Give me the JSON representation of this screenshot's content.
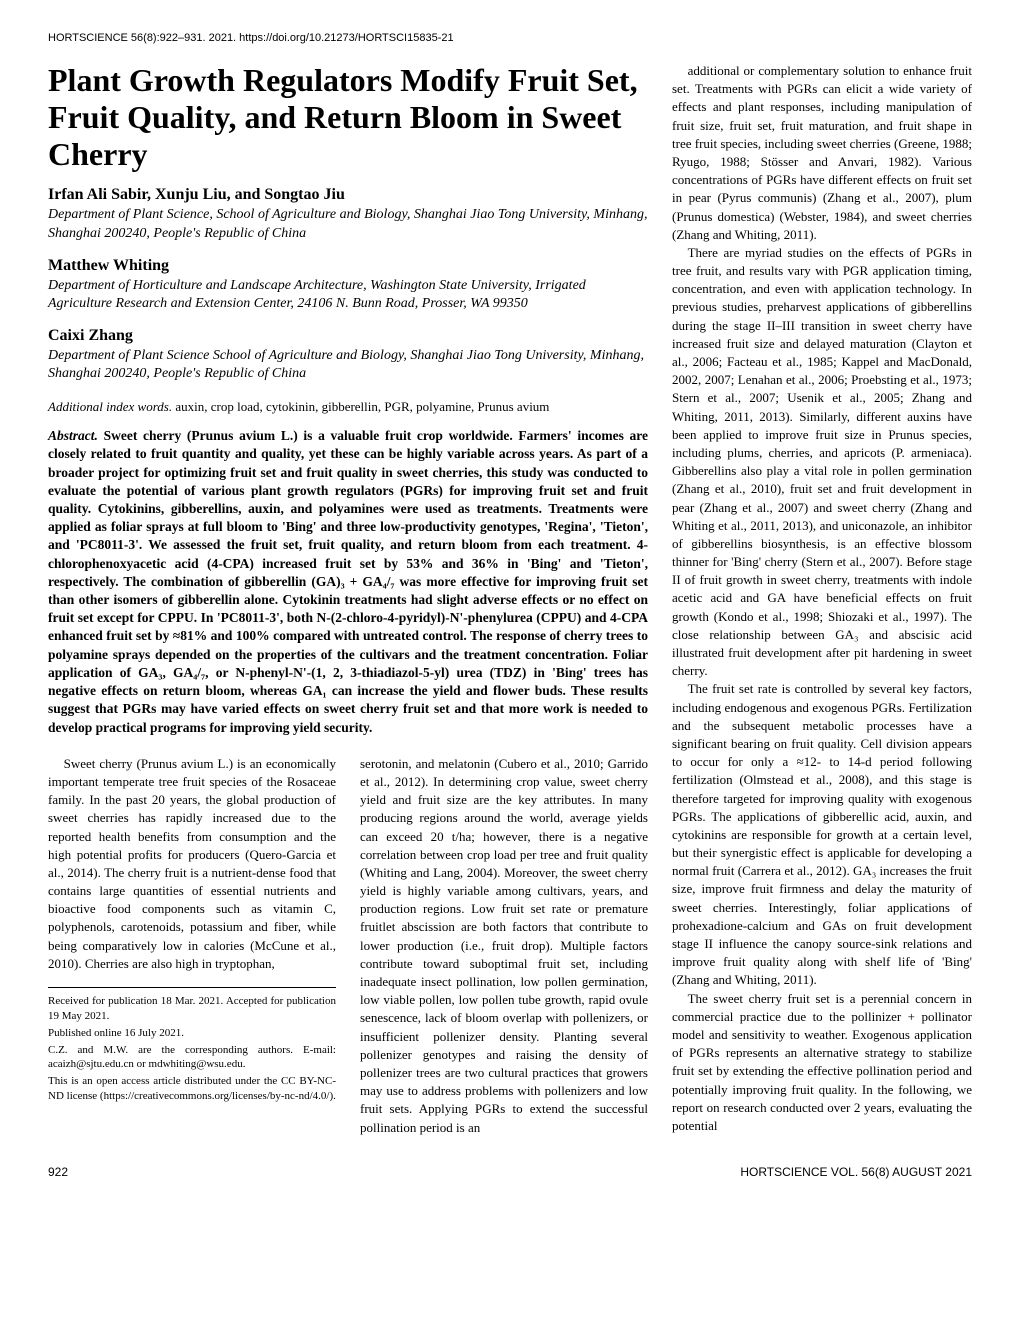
{
  "journal_header": "HORTSCIENCE 56(8):922–931. 2021. https://doi.org/10.21273/HORTSCI15835-21",
  "title": "Plant Growth Regulators Modify Fruit Set, Fruit Quality, and Return Bloom in Sweet Cherry",
  "authors": [
    {
      "names": "Irfan Ali Sabir, Xunju Liu, and Songtao Jiu",
      "affiliation": "Department of Plant Science, School of Agriculture and Biology, Shanghai Jiao Tong University, Minhang, Shanghai 200240, People's Republic of China"
    },
    {
      "names": "Matthew Whiting",
      "affiliation": "Department of Horticulture and Landscape Architecture, Washington State University, Irrigated Agriculture Research and Extension Center, 24106 N. Bunn Road, Prosser, WA 99350"
    },
    {
      "names": "Caixi Zhang",
      "affiliation": "Department of Plant Science School of Agriculture and Biology, Shanghai Jiao Tong University, Minhang, Shanghai 200240, People's Republic of China"
    }
  ],
  "keywords_label": "Additional index words.",
  "keywords_text": " auxin, crop load, cytokinin, gibberellin, PGR, polyamine, Prunus avium",
  "abstract_lead": "Abstract.",
  "abstract_body": " Sweet cherry (Prunus avium L.) is a valuable fruit crop worldwide. Farmers' incomes are closely related to fruit quantity and quality, yet these can be highly variable across years. As part of a broader project for optimizing fruit set and fruit quality in sweet cherries, this study was conducted to evaluate the potential of various plant growth regulators (PGRs) for improving fruit set and fruit quality. Cytokinins, gibberellins, auxin, and polyamines were used as treatments. Treatments were applied as foliar sprays at full bloom to 'Bing' and three low-productivity genotypes, 'Regina', 'Tieton', and 'PC8011-3'. We assessed the fruit set, fruit quality, and return bloom from each treatment. 4-chlorophenoxyacetic acid (4-CPA) increased fruit set by 53% and 36% in 'Bing' and 'Tieton', respectively. The combination of gibberellin (GA)₃ + GA₄/₇ was more effective for improving fruit set than other isomers of gibberellin alone. Cytokinin treatments had slight adverse effects or no effect on fruit set except for CPPU. In 'PC8011-3', both N-(2-chloro-4-pyridyl)-N'-phenylurea (CPPU) and 4-CPA enhanced fruit set by ≈81% and 100% compared with untreated control. The response of cherry trees to polyamine sprays depended on the properties of the cultivars and the treatment concentration. Foliar application of GA₃, GA₄/₇, or N-phenyl-N'-(1, 2, 3-thiadiazol-5-yl) urea (TDZ) in 'Bing' trees has negative effects on return bloom, whereas GA₁ can increase the yield and flower buds. These results suggest that PGRs may have varied effects on sweet cherry fruit set and that more work is needed to develop practical programs for improving yield security.",
  "body_left_1": "Sweet cherry (Prunus avium L.) is an economically important temperate tree fruit species of the Rosaceae family. In the past 20 years, the global production of sweet cherries has rapidly increased due to the reported health benefits from consumption and the high potential profits for producers (Quero-Garcia et al., 2014). The cherry fruit is a nutrient-dense food that contains large quantities of essential nutrients and bioactive food components such as vitamin C, polyphenols, carotenoids, potassium and fiber, while being comparatively low in calories (McCune et al., 2010). Cherries are also high in tryptophan,",
  "body_left_2": "serotonin, and melatonin (Cubero et al., 2010; Garrido et al., 2012). In determining crop value, sweet cherry yield and fruit size are the key attributes. In many producing regions around the world, average yields can exceed 20 t/ha; however, there is a negative correlation between crop load per tree and fruit quality (Whiting and Lang, 2004). Moreover, the sweet cherry yield is highly variable among cultivars, years, and production regions. Low fruit set rate or premature fruitlet abscission are both factors that contribute to lower production (i.e., fruit drop). Multiple factors contribute toward suboptimal fruit set, including inadequate insect pollination, low pollen germination, low viable pollen, low pollen tube growth, rapid ovule senescence, lack of bloom overlap with pollenizers, or insufficient pollenizer density. Planting several pollenizer genotypes and raising the density of pollenizer trees are two cultural practices that growers may use to address problems with pollenizers and low fruit sets. Applying PGRs to extend the successful pollination period is an",
  "footnotes": {
    "received": "Received for publication 18 Mar. 2021. Accepted for publication 19 May 2021.",
    "published": "Published online 16 July 2021.",
    "corresponding": "C.Z. and M.W. are the corresponding authors. E-mail: acaizh@sjtu.edu.cn or mdwhiting@wsu.edu.",
    "license": "This is an open access article distributed under the CC BY-NC-ND license (https://creativecommons.org/licenses/by-nc-nd/4.0/)."
  },
  "body_right_1": "additional or complementary solution to enhance fruit set. Treatments with PGRs can elicit a wide variety of effects and plant responses, including manipulation of fruit size, fruit set, fruit maturation, and fruit shape in tree fruit species, including sweet cherries (Greene, 1988; Ryugo, 1988; Stösser and Anvari, 1982). Various concentrations of PGRs have different effects on fruit set in pear (Pyrus communis) (Zhang et al., 2007), plum (Prunus domestica) (Webster, 1984), and sweet cherries (Zhang and Whiting, 2011).",
  "body_right_2": "There are myriad studies on the effects of PGRs in tree fruit, and results vary with PGR application timing, concentration, and even with application technology. In previous studies, preharvest applications of gibberellins during the stage II–III transition in sweet cherry have increased fruit size and delayed maturation (Clayton et al., 2006; Facteau et al., 1985; Kappel and MacDonald, 2002, 2007; Lenahan et al., 2006; Proebsting et al., 1973; Stern et al., 2007; Usenik et al., 2005; Zhang and Whiting, 2011, 2013). Similarly, different auxins have been applied to improve fruit size in Prunus species, including plums, cherries, and apricots (P. armeniaca). Gibberellins also play a vital role in pollen germination (Zhang et al., 2010), fruit set and fruit development in pear (Zhang et al., 2007) and sweet cherry (Zhang and Whiting et al., 2011, 2013), and uniconazole, an inhibitor of gibberellins biosynthesis, is an effective blossom thinner for 'Bing' cherry (Stern et al., 2007). Before stage II of fruit growth in sweet cherry, treatments with indole acetic acid and GA have beneficial effects on fruit growth (Kondo et al., 1998; Shiozaki et al., 1997). The close relationship between GA₃ and abscisic acid illustrated fruit development after pit hardening in sweet cherry.",
  "body_right_3": "The fruit set rate is controlled by several key factors, including endogenous and exogenous PGRs. Fertilization and the subsequent metabolic processes have a significant bearing on fruit quality. Cell division appears to occur for only a ≈12- to 14-d period following fertilization (Olmstead et al., 2008), and this stage is therefore targeted for improving quality with exogenous PGRs. The applications of gibberellic acid, auxin, and cytokinins are responsible for growth at a certain level, but their synergistic effect is applicable for developing a normal fruit (Carrera et al., 2012). GA₃ increases the fruit size, improve fruit firmness and delay the maturity of sweet cherries. Interestingly, foliar applications of prohexadione-calcium and GAs on fruit development stage II influence the canopy source-sink relations and improve fruit quality along with shelf life of 'Bing' (Zhang and Whiting, 2011).",
  "body_right_4": "The sweet cherry fruit set is a perennial concern in commercial practice due to the pollinizer + pollinator model and sensitivity to weather. Exogenous application of PGRs represents an alternative strategy to stabilize fruit set by extending the effective pollination period and potentially improving fruit quality. In the following, we report on research conducted over 2 years, evaluating the potential",
  "footer": {
    "page": "922",
    "journal": "HORTSCIENCE VOL. 56(8) AUGUST 2021"
  }
}
